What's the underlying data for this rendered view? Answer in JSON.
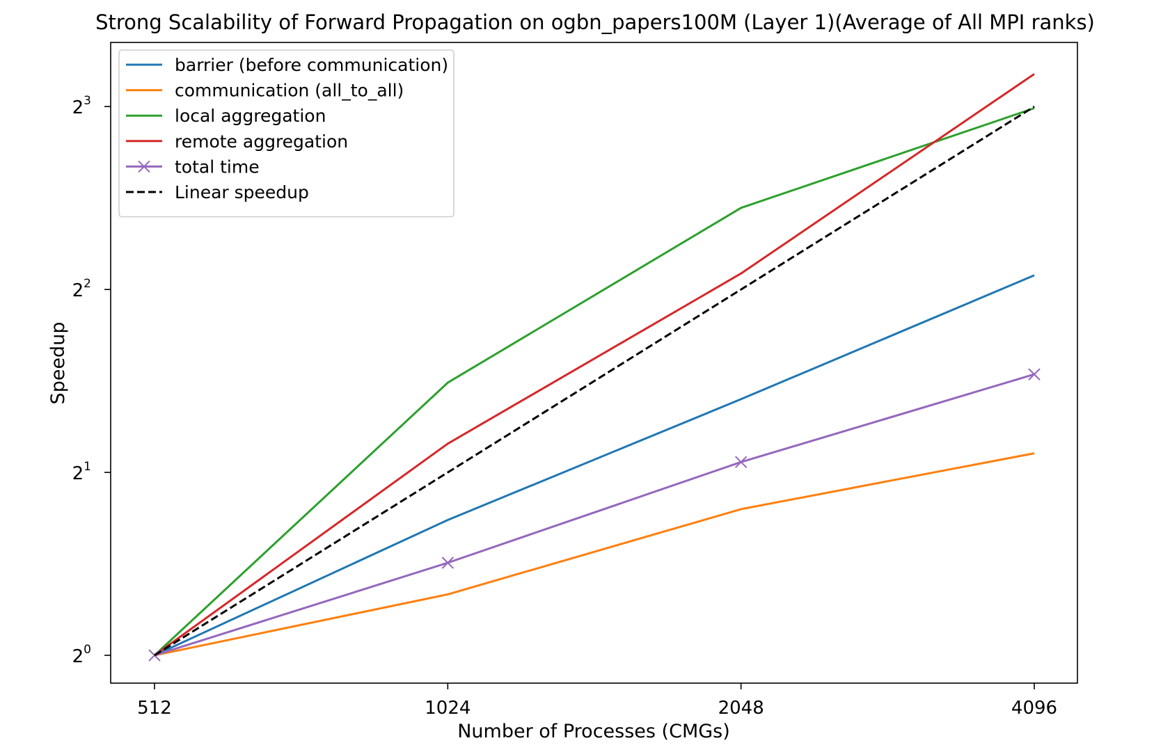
{
  "chart_data": {
    "type": "line",
    "title": "Strong Scalability of Forward Propagation on ogbn_papers100M (Layer 1)(Average of All MPI ranks)",
    "xlabel": "Number of Processes (CMGs)",
    "ylabel": "Speedup",
    "x_scale": "log2",
    "y_scale": "log2",
    "x": [
      512,
      1024,
      2048,
      4096
    ],
    "x_tick_labels": [
      "512",
      "1024",
      "2048",
      "4096"
    ],
    "y_ticks": [
      1,
      2,
      4,
      8
    ],
    "y_tick_labels": [
      {
        "base": "2",
        "exp": "0"
      },
      {
        "base": "2",
        "exp": "1"
      },
      {
        "base": "2",
        "exp": "2"
      },
      {
        "base": "2",
        "exp": "3"
      }
    ],
    "ylim": [
      0.9,
      10.2
    ],
    "grid": false,
    "legend_position": "upper-left",
    "series": [
      {
        "name": "barrier (before communication)",
        "color": "#1f77b4",
        "marker": "none",
        "dash": false,
        "values": [
          1.0,
          1.67,
          2.64,
          4.22
        ]
      },
      {
        "name": "communication (all_to_all)",
        "color": "#ff7f0e",
        "marker": "none",
        "dash": false,
        "values": [
          1.0,
          1.26,
          1.74,
          2.15
        ]
      },
      {
        "name": "local aggregation",
        "color": "#2ca02c",
        "marker": "none",
        "dash": false,
        "values": [
          1.0,
          2.81,
          5.45,
          7.95
        ]
      },
      {
        "name": "remote aggregation",
        "color": "#d62728",
        "marker": "none",
        "dash": false,
        "values": [
          1.0,
          2.23,
          4.25,
          9.05
        ]
      },
      {
        "name": "total time",
        "color": "#9467bd",
        "marker": "x",
        "dash": false,
        "values": [
          1.0,
          1.42,
          2.08,
          2.9
        ]
      },
      {
        "name": "Linear speedup",
        "color": "#000000",
        "marker": "none",
        "dash": true,
        "values": [
          1,
          2,
          4,
          8
        ]
      }
    ]
  }
}
